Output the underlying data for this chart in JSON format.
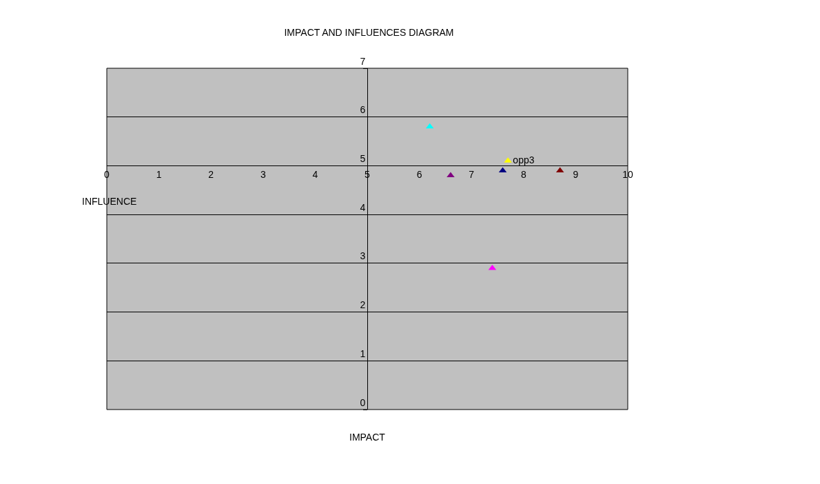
{
  "chart_data": {
    "type": "scatter",
    "title": "IMPACT AND INFLUENCES DIAGRAM",
    "xlabel": "IMPACT",
    "ylabel": "INFLUENCE",
    "series": [
      {
        "color": "#00ffff",
        "x": [
          6.2
        ],
        "values": [
          5.8
        ]
      },
      {
        "name": "opp3",
        "color": "#ffff00",
        "x": [
          7.7
        ],
        "values": [
          5.1
        ]
      },
      {
        "color": "#800080",
        "x": [
          6.6
        ],
        "values": [
          4.8
        ]
      },
      {
        "color": "#000080",
        "x": [
          7.6
        ],
        "values": [
          4.9
        ]
      },
      {
        "color": "#800000",
        "x": [
          8.7
        ],
        "values": [
          4.9
        ]
      },
      {
        "color": "#ff00ff",
        "x": [
          7.4
        ],
        "values": [
          2.9
        ]
      }
    ],
    "xlim": [
      0,
      10
    ],
    "xticks": [
      0,
      1,
      2,
      3,
      4,
      5,
      6,
      7,
      8,
      9,
      10
    ],
    "ylim": [
      0,
      7
    ],
    "yticks": [
      0,
      1,
      2,
      3,
      4,
      5,
      6,
      7
    ],
    "grid": "y",
    "legend": false,
    "marker": "triangle"
  }
}
